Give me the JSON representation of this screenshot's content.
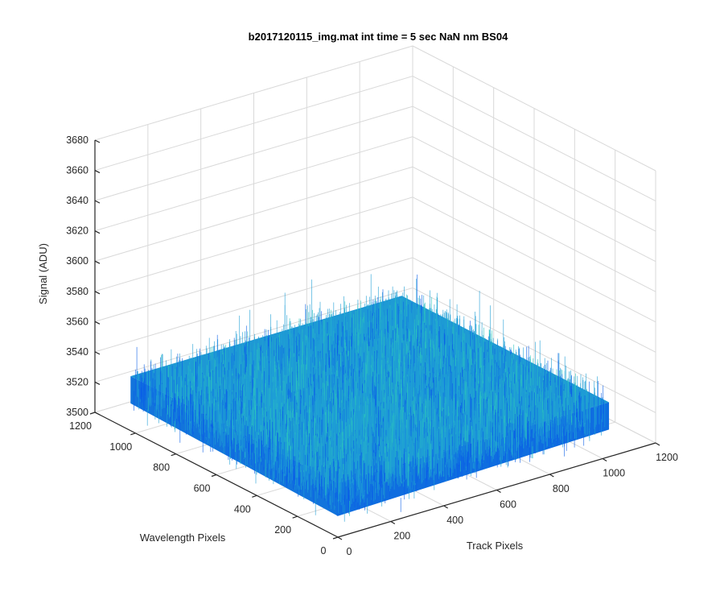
{
  "chart_data": {
    "type": "surface",
    "title": "b2017120115_img.mat int time = 5 sec  NaN nm BS04",
    "xlabel": "Track Pixels",
    "ylabel": "Wavelength Pixels",
    "zlabel": "Signal (ADU)",
    "x_ticks": [
      "0",
      "200",
      "400",
      "600",
      "800",
      "1000",
      "1200"
    ],
    "y_ticks": [
      "0",
      "200",
      "400",
      "600",
      "800",
      "1000",
      "1200"
    ],
    "z_ticks": [
      "3500",
      "3520",
      "3540",
      "3560",
      "3580",
      "3600",
      "3620",
      "3640",
      "3660",
      "3680"
    ],
    "xlim": [
      0,
      1200
    ],
    "ylim": [
      0,
      1200
    ],
    "zlim": [
      3500,
      3680
    ],
    "x_extent": [
      0,
      1024
    ],
    "y_extent": [
      0,
      1024
    ],
    "surface_mean": 3528,
    "surface_noise_range": [
      3505,
      3575
    ],
    "grid": true,
    "colormap": "parula",
    "colors": {
      "low": "#0a5ee8",
      "mid": "#1f9fd6",
      "high": "#2cc4bd"
    }
  }
}
